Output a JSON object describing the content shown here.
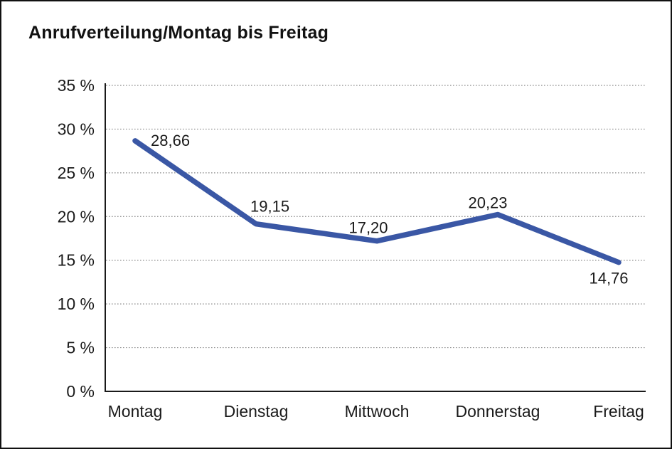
{
  "title": "Anrufverteilung/Montag bis Freitag",
  "chart_data": {
    "type": "line",
    "title": "Anrufverteilung/Montag bis Freitag",
    "categories": [
      "Montag",
      "Dienstag",
      "Mittwoch",
      "Donnerstag",
      "Freitag"
    ],
    "series": [
      {
        "name": "Anrufverteilung",
        "values": [
          28.66,
          19.15,
          17.2,
          20.23,
          14.76
        ]
      }
    ],
    "point_labels": [
      "28,66",
      "19,15",
      "17,20",
      "20,23",
      "14,76"
    ],
    "xlabel": "",
    "ylabel": "",
    "ylim": [
      0,
      35
    ],
    "ytick_step": 5,
    "ytick_labels": [
      "0 %",
      "5 %",
      "10 %",
      "15 %",
      "20 %",
      "25 %",
      "30 %",
      "35 %"
    ],
    "grid": "horizontal-dotted",
    "legend": "none",
    "colors": {
      "line": "#3a57a5",
      "text": "#1a1a1a",
      "grid": "#8a8a8a",
      "axis": "#1a1a1a",
      "background": "#ffffff",
      "border": "#111111"
    }
  }
}
